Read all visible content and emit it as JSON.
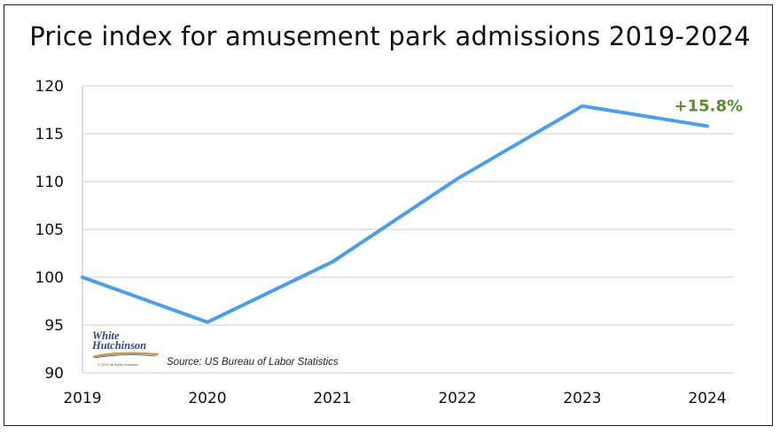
{
  "chart_data": {
    "type": "line",
    "title": "Price index for amusement park admissions 2019-2024",
    "x": [
      "2019",
      "2020",
      "2021",
      "2022",
      "2023",
      "2024"
    ],
    "series": [
      {
        "values": [
          100.0,
          95.3,
          101.6,
          110.3,
          117.9,
          115.8
        ]
      }
    ],
    "ylim": [
      90,
      120
    ],
    "yticks": [
      90,
      95,
      100,
      105,
      110,
      115,
      120
    ],
    "grid": true,
    "line_color": "#4a9eea",
    "annotation": {
      "text": "+15.8%",
      "color": "#5a8f2e"
    },
    "source": "Source: US Bureau of Labor Statistics"
  },
  "logo": {
    "line1": "White",
    "line2": "Hutchinson",
    "line3": "© 2023 all rights reserved"
  }
}
